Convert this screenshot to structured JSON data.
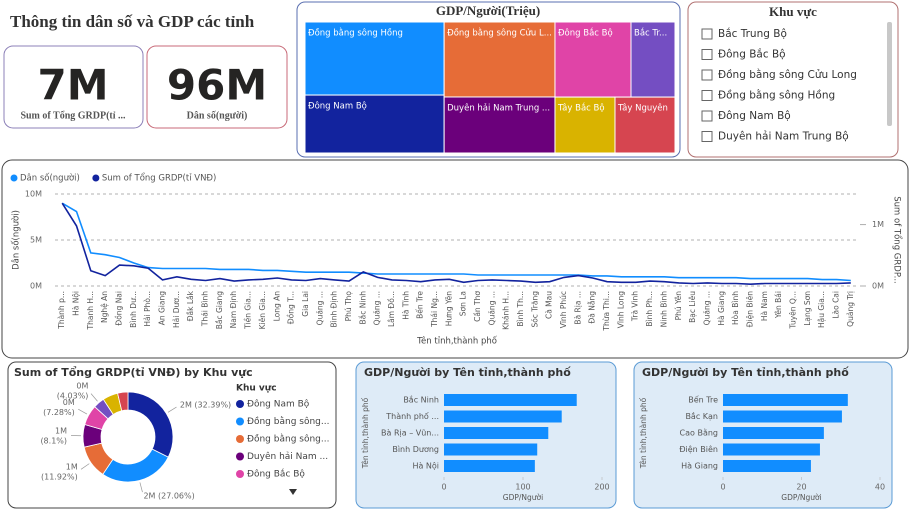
{
  "title": "Thông tin dân số và GDP các tỉnh",
  "cards": [
    {
      "value": "7M",
      "label": "Sum of Tổng GRDP(tỉ ..."
    },
    {
      "value": "96M",
      "label": "Dân số(người)"
    }
  ],
  "slicer": {
    "title": "Khu vực",
    "items": [
      "Bắc Trung Bộ",
      "Đông Bắc Bộ",
      "Đồng bằng sông Cửu Long",
      "Đồng bằng sông Hồng",
      "Đông Nam Bộ",
      "Duyên hải Nam Trung Bộ"
    ]
  },
  "chart_data": [
    {
      "type": "treemap",
      "title": "GDP/Người(Triệu)",
      "categories": [
        "Đồng bằng sông Hồng",
        "Đông Nam Bộ",
        "Đồng bằng sông Cửu L...",
        "Duyên hải Nam Trung ...",
        "Đông Bắc Bộ",
        "Bắc Tr...",
        "Tây Bắc Bộ",
        "Tây Nguyên"
      ],
      "values": [
        203,
        161,
        166,
        124,
        114,
        66,
        67,
        67
      ],
      "colors": [
        "#118DFF",
        "#12239E",
        "#E66C37",
        "#6B007B",
        "#E044A7",
        "#744EC2",
        "#D9B300",
        "#D64550"
      ]
    },
    {
      "type": "line",
      "x_label": "Tên tỉnh,thành phố",
      "y_label": "Dân số(người)",
      "y2_label": "Sum of Tổng GRDP...",
      "categories": [
        "Thành p...",
        "Hà Nội",
        "Thanh H...",
        "Nghệ An",
        "Đồng Nai",
        "Bình Dư...",
        "Hải Phò...",
        "An Giang",
        "Hải Dươ...",
        "Đắk Lắk",
        "Thái Bình",
        "Bắc Giang",
        "Nam Định",
        "Tiền Gia...",
        "Kiên Gia...",
        "Long An",
        "Đồng T...",
        "Gia Lai",
        "Quảng ...",
        "Bình Định",
        "Phú Thọ",
        "Bắc Ninh",
        "Quảng ...",
        "Lâm Đồ...",
        "Hà Tĩnh",
        "Bến Tre",
        "Thái Ng...",
        "Hưng Yên",
        "Sơn La",
        "Cần Thơ",
        "Quảng ...",
        "Khánh H...",
        "Bình Th...",
        "Sóc Trăng",
        "Cà Mau",
        "Vĩnh Phúc",
        "Bà Rịa ...",
        "Đà Nẵng",
        "Thừa Thi...",
        "Vĩnh Long",
        "Trà Vinh",
        "Bình Ph...",
        "Ninh Bình",
        "Phú Yên",
        "Bạc Liêu",
        "Quảng ...",
        "Hà Giang",
        "Hòa Bình",
        "Điện Biên",
        "Hà Nam",
        "Yên Bái",
        "Tuyên Q...",
        "Lạng Sơn",
        "Hậu Gia...",
        "Lào Cai",
        "Quảng Trị"
      ],
      "series": [
        {
          "name": "Dân số(người)",
          "color": "#118DFF",
          "values": [
            9000000,
            8100000,
            3600000,
            3400000,
            3100000,
            2500000,
            2000000,
            1900000,
            1900000,
            1900000,
            1900000,
            1800000,
            1800000,
            1800000,
            1700000,
            1700000,
            1600000,
            1500000,
            1500000,
            1500000,
            1500000,
            1400000,
            1300000,
            1300000,
            1300000,
            1300000,
            1300000,
            1300000,
            1300000,
            1200000,
            1200000,
            1200000,
            1200000,
            1200000,
            1200000,
            1200000,
            1200000,
            1100000,
            1100000,
            1000000,
            1000000,
            1000000,
            1000000,
            900000,
            900000,
            900000,
            900000,
            900000,
            800000,
            800000,
            800000,
            800000,
            800000,
            700000,
            700000,
            600000
          ]
        },
        {
          "name": "Sum of Tổng GRDP(tỉ VNĐ)",
          "color": "#12239E",
          "axis": "y2",
          "values": [
            1350000,
            980000,
            250000,
            170000,
            340000,
            330000,
            290000,
            100000,
            150000,
            110000,
            90000,
            120000,
            80000,
            100000,
            110000,
            130000,
            100000,
            90000,
            120000,
            100000,
            80000,
            230000,
            140000,
            100000,
            90000,
            70000,
            100000,
            110000,
            60000,
            90000,
            100000,
            90000,
            80000,
            60000,
            70000,
            140000,
            170000,
            130000,
            70000,
            60000,
            60000,
            80000,
            70000,
            50000,
            40000,
            50000,
            40000,
            40000,
            30000,
            40000,
            40000,
            40000,
            40000,
            40000,
            40000,
            50000
          ]
        }
      ],
      "ylim": [
        0,
        10000000
      ],
      "yticks": [
        {
          "value": 0,
          "label": "0M"
        },
        {
          "value": 5000000,
          "label": "5M"
        },
        {
          "value": 10000000,
          "label": "10M"
        }
      ],
      "y2lim": [
        0,
        1500000
      ],
      "y2ticks": [
        {
          "value": 0,
          "label": "0M"
        },
        {
          "value": 1000000,
          "label": "1M"
        }
      ],
      "grid": true
    },
    {
      "type": "donut",
      "title": "Sum of Tổng GRDP(tỉ VNĐ) by Khu vực",
      "legend_title": "Khu vực",
      "categories": [
        "Đông Nam Bộ",
        "Đồng bằng sông...",
        "Đồng bằng sông...",
        "Duyên hải Nam ...",
        "Đông Bắc Bộ",
        null,
        null,
        null
      ],
      "values": [
        32.39,
        27.06,
        11.92,
        8.1,
        7.28,
        4.03,
        5.5,
        3.72
      ],
      "value_labels": [
        "2M (32.39%)",
        "2M (27.06%)",
        "1M (11.92%)",
        "1M (8.1%)",
        "0M (7.28%)",
        "0M (4.03%)",
        null,
        null
      ],
      "colors": [
        "#12239E",
        "#118DFF",
        "#E66C37",
        "#6B007B",
        "#E044A7",
        "#744EC2",
        "#D9B300",
        "#D64550"
      ]
    },
    {
      "type": "hbar",
      "title": "GDP/Người by Tên tỉnh,thành phố",
      "x_label": "GDP/Người",
      "y_label": "Tên tỉnh,thành phố",
      "categories": [
        "Bắc Ninh",
        "Thành phố ...",
        "Bà Rịa – Vũn...",
        "Bình Dương",
        "Hà Nội"
      ],
      "values": [
        168,
        149,
        132,
        118,
        115
      ],
      "color": "#118DFF",
      "xlim": [
        0,
        200
      ],
      "xticks": [
        0,
        100,
        200
      ]
    },
    {
      "type": "hbar",
      "title": "GDP/Người by Tên tỉnh,thành phố",
      "x_label": "GDP/Người",
      "y_label": "Tên tỉnh,thành phố",
      "categories": [
        "Bến Tre",
        "Bắc Kạn",
        "Cao Bằng",
        "Điện Biên",
        "Hà Giang"
      ],
      "values": [
        31.8,
        30.3,
        25.7,
        24.7,
        22.4
      ],
      "color": "#118DFF",
      "xlim": [
        0,
        40
      ],
      "xticks": [
        0,
        20,
        40
      ]
    }
  ]
}
